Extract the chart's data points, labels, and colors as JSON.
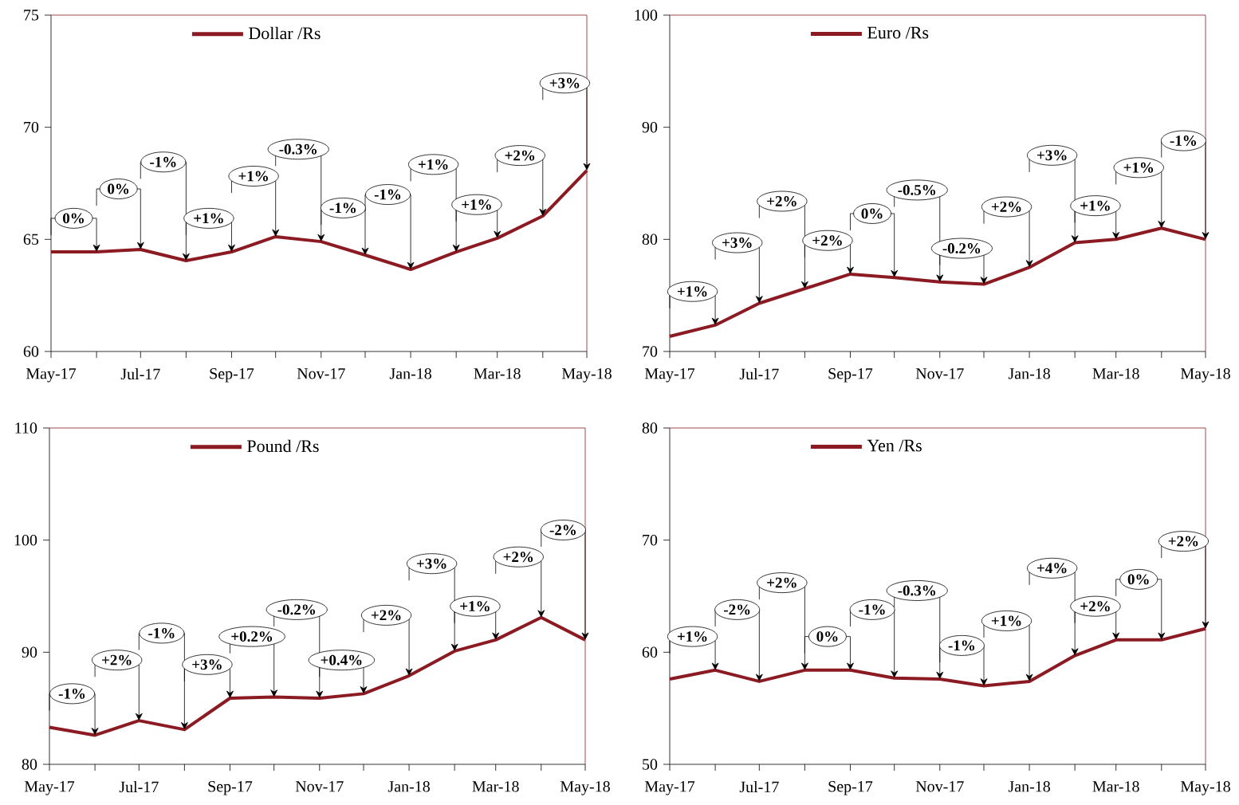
{
  "chart_data": [
    {
      "type": "line",
      "x": [
        "2017-05",
        "2017-06",
        "2017-07",
        "2017-08",
        "2017-09",
        "2017-10",
        "2017-11",
        "2017-12",
        "2018-01",
        "2018-02",
        "2018-03",
        "2018-04",
        "2018-05"
      ],
      "series": [
        {
          "name": "Dollar /Rs",
          "color": "#8b1a22",
          "values": [
            64.44,
            64.44,
            64.55,
            64.05,
            64.44,
            65.12,
            64.9,
            64.3,
            63.66,
            64.44,
            65.05,
            66.04,
            68.07
          ]
        }
      ],
      "xlim": [
        "2017-05",
        "2018-05"
      ],
      "ylim": [
        60,
        75
      ],
      "xticks": [
        {
          "value": "2017-05",
          "label": "May-17"
        },
        {
          "value": "2017-06",
          "label": null
        },
        {
          "value": "2017-07",
          "label": "Jul-17"
        },
        {
          "value": "2017-08",
          "label": null
        },
        {
          "value": "2017-09",
          "label": "Sep-17"
        },
        {
          "value": "2017-10",
          "label": null
        },
        {
          "value": "2017-11",
          "label": "Nov-17"
        },
        {
          "value": "2017-12",
          "label": null
        },
        {
          "value": "2018-01",
          "label": "Jan-18"
        },
        {
          "value": "2018-02",
          "label": null
        },
        {
          "value": "2018-03",
          "label": "Mar-18"
        },
        {
          "value": "2018-04",
          "label": null
        },
        {
          "value": "2018-05",
          "label": "May-18"
        }
      ],
      "yticks": [
        60,
        65,
        70,
        75
      ],
      "legend": "top",
      "line_style": "solid",
      "annotations": [
        {
          "text": "0%",
          "x": "2017-06",
          "y": 64.44
        },
        {
          "text": "0%",
          "x": "2017-07",
          "y": 64.55
        },
        {
          "text": "-1%",
          "x": "2017-08",
          "y": 64.05
        },
        {
          "text": "+1%",
          "x": "2017-09",
          "y": 64.44
        },
        {
          "text": "+1%",
          "x": "2017-10",
          "y": 65.12
        },
        {
          "text": "-0.3%",
          "x": "2017-11",
          "y": 64.9
        },
        {
          "text": "-1%",
          "x": "2017-12",
          "y": 64.3
        },
        {
          "text": "-1%",
          "x": "2018-01",
          "y": 63.66
        },
        {
          "text": "+1%",
          "x": "2018-02",
          "y": 64.44
        },
        {
          "text": "+1%",
          "x": "2018-03",
          "y": 65.05
        },
        {
          "text": "+2%",
          "x": "2018-04",
          "y": 66.04
        },
        {
          "text": "+3%",
          "x": "2018-05",
          "y": 68.07
        }
      ]
    },
    {
      "type": "line",
      "x": [
        "2017-05",
        "2017-06",
        "2017-07",
        "2017-08",
        "2017-09",
        "2017-10",
        "2017-11",
        "2017-12",
        "2018-01",
        "2018-02",
        "2018-03",
        "2018-04",
        "2018-05"
      ],
      "series": [
        {
          "name": "Euro /Rs",
          "color": "#8b1a22",
          "values": [
            71.35,
            72.35,
            74.3,
            75.6,
            76.9,
            76.6,
            76.2,
            76.0,
            77.5,
            79.7,
            80.0,
            81.0,
            80.0
          ]
        }
      ],
      "xlim": [
        "2017-05",
        "2018-05"
      ],
      "ylim": [
        70,
        100
      ],
      "xticks": [
        {
          "value": "2017-05",
          "label": "May-17"
        },
        {
          "value": "2017-06",
          "label": null
        },
        {
          "value": "2017-07",
          "label": "Jul-17"
        },
        {
          "value": "2017-08",
          "label": null
        },
        {
          "value": "2017-09",
          "label": "Sep-17"
        },
        {
          "value": "2017-10",
          "label": null
        },
        {
          "value": "2017-11",
          "label": "Nov-17"
        },
        {
          "value": "2017-12",
          "label": null
        },
        {
          "value": "2018-01",
          "label": "Jan-18"
        },
        {
          "value": "2018-02",
          "label": null
        },
        {
          "value": "2018-03",
          "label": "Mar-18"
        },
        {
          "value": "2018-04",
          "label": null
        },
        {
          "value": "2018-05",
          "label": "May-18"
        }
      ],
      "yticks": [
        70,
        80,
        90,
        100
      ],
      "legend": "top",
      "line_style": "solid",
      "annotations": [
        {
          "text": "+1%",
          "x": "2017-06",
          "y": 72.35
        },
        {
          "text": "+3%",
          "x": "2017-07",
          "y": 74.3
        },
        {
          "text": "+2%",
          "x": "2017-08",
          "y": 75.6
        },
        {
          "text": "+2%",
          "x": "2017-09",
          "y": 76.9
        },
        {
          "text": "0%",
          "x": "2017-10",
          "y": 76.6
        },
        {
          "text": "-0.5%",
          "x": "2017-11",
          "y": 76.2
        },
        {
          "text": "-0.2%",
          "x": "2017-12",
          "y": 76.0
        },
        {
          "text": "+2%",
          "x": "2018-01",
          "y": 77.5
        },
        {
          "text": "+3%",
          "x": "2018-02",
          "y": 79.7
        },
        {
          "text": "+1%",
          "x": "2018-03",
          "y": 80.0
        },
        {
          "text": "+1%",
          "x": "2018-04",
          "y": 81.0
        },
        {
          "text": "-1%",
          "x": "2018-05",
          "y": 80.0
        }
      ]
    },
    {
      "type": "line",
      "x": [
        "2017-05",
        "2017-06",
        "2017-07",
        "2017-08",
        "2017-09",
        "2017-10",
        "2017-11",
        "2017-12",
        "2018-01",
        "2018-02",
        "2018-03",
        "2018-04",
        "2018-05"
      ],
      "series": [
        {
          "name": "Pound /Rs",
          "color": "#8b1a22",
          "values": [
            83.3,
            82.6,
            83.9,
            83.1,
            85.9,
            86.0,
            85.9,
            86.3,
            87.9,
            90.1,
            91.1,
            93.1,
            91.1
          ]
        }
      ],
      "xlim": [
        "2017-05",
        "2018-05"
      ],
      "ylim": [
        80,
        110
      ],
      "xticks": [
        {
          "value": "2017-05",
          "label": "May-17"
        },
        {
          "value": "2017-06",
          "label": null
        },
        {
          "value": "2017-07",
          "label": "Jul-17"
        },
        {
          "value": "2017-08",
          "label": null
        },
        {
          "value": "2017-09",
          "label": "Sep-17"
        },
        {
          "value": "2017-10",
          "label": null
        },
        {
          "value": "2017-11",
          "label": "Nov-17"
        },
        {
          "value": "2017-12",
          "label": null
        },
        {
          "value": "2018-01",
          "label": "Jan-18"
        },
        {
          "value": "2018-02",
          "label": null
        },
        {
          "value": "2018-03",
          "label": "Mar-18"
        },
        {
          "value": "2018-04",
          "label": null
        },
        {
          "value": "2018-05",
          "label": "May-18"
        }
      ],
      "yticks": [
        80,
        90,
        100,
        110
      ],
      "legend": "top",
      "line_style": "solid",
      "annotations": [
        {
          "text": "-1%",
          "x": "2017-06",
          "y": 82.6
        },
        {
          "text": "+2%",
          "x": "2017-07",
          "y": 83.9
        },
        {
          "text": "-1%",
          "x": "2017-08",
          "y": 83.1
        },
        {
          "text": "+3%",
          "x": "2017-09",
          "y": 85.9
        },
        {
          "text": "+0.2%",
          "x": "2017-10",
          "y": 86.0
        },
        {
          "text": "-0.2%",
          "x": "2017-11",
          "y": 85.9
        },
        {
          "text": "+0.4%",
          "x": "2017-12",
          "y": 86.3
        },
        {
          "text": "+2%",
          "x": "2018-01",
          "y": 87.9
        },
        {
          "text": "+3%",
          "x": "2018-02",
          "y": 90.1
        },
        {
          "text": "+1%",
          "x": "2018-03",
          "y": 91.1
        },
        {
          "text": "+2%",
          "x": "2018-04",
          "y": 93.1
        },
        {
          "text": "-2%",
          "x": "2018-05",
          "y": 91.1
        }
      ]
    },
    {
      "type": "line",
      "x": [
        "2017-05",
        "2017-06",
        "2017-07",
        "2017-08",
        "2017-09",
        "2017-10",
        "2017-11",
        "2017-12",
        "2018-01",
        "2018-02",
        "2018-03",
        "2018-04",
        "2018-05"
      ],
      "series": [
        {
          "name": "Yen /Rs",
          "color": "#8b1a22",
          "values": [
            57.6,
            58.4,
            57.4,
            58.4,
            58.4,
            57.7,
            57.6,
            57.0,
            57.4,
            59.7,
            61.1,
            61.1,
            62.1
          ]
        }
      ],
      "xlim": [
        "2017-05",
        "2018-05"
      ],
      "ylim": [
        50,
        80
      ],
      "xticks": [
        {
          "value": "2017-05",
          "label": "May-17"
        },
        {
          "value": "2017-06",
          "label": null
        },
        {
          "value": "2017-07",
          "label": "Jul-17"
        },
        {
          "value": "2017-08",
          "label": null
        },
        {
          "value": "2017-09",
          "label": "Sep-17"
        },
        {
          "value": "2017-10",
          "label": null
        },
        {
          "value": "2017-11",
          "label": "Nov-17"
        },
        {
          "value": "2017-12",
          "label": null
        },
        {
          "value": "2018-01",
          "label": "Jan-18"
        },
        {
          "value": "2018-02",
          "label": null
        },
        {
          "value": "2018-03",
          "label": "Mar-18"
        },
        {
          "value": "2018-04",
          "label": null
        },
        {
          "value": "2018-05",
          "label": "May-18"
        }
      ],
      "yticks": [
        50,
        60,
        70,
        80
      ],
      "legend": "top",
      "line_style": "solid",
      "annotations": [
        {
          "text": "+1%",
          "x": "2017-06",
          "y": 58.4
        },
        {
          "text": "-2%",
          "x": "2017-07",
          "y": 57.4
        },
        {
          "text": "+2%",
          "x": "2017-08",
          "y": 58.4
        },
        {
          "text": "0%",
          "x": "2017-09",
          "y": 58.4
        },
        {
          "text": "-1%",
          "x": "2017-10",
          "y": 57.7
        },
        {
          "text": "-0.3%",
          "x": "2017-11",
          "y": 57.6
        },
        {
          "text": "-1%",
          "x": "2017-12",
          "y": 57.0
        },
        {
          "text": "+1%",
          "x": "2018-01",
          "y": 57.4
        },
        {
          "text": "+4%",
          "x": "2018-02",
          "y": 59.7
        },
        {
          "text": "+2%",
          "x": "2018-03",
          "y": 61.1
        },
        {
          "text": "0%",
          "x": "2018-04",
          "y": 61.1
        },
        {
          "text": "+2%",
          "x": "2018-05",
          "y": 62.1
        }
      ]
    }
  ]
}
